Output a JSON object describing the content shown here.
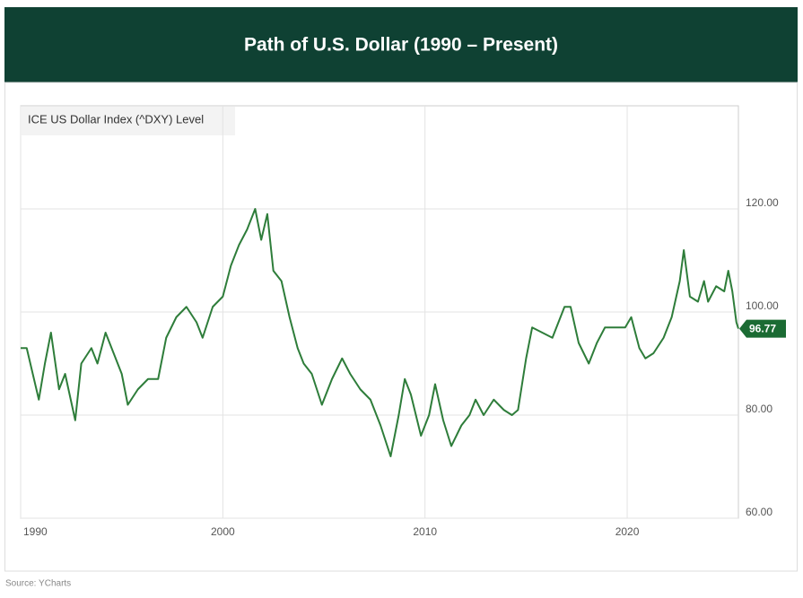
{
  "chart_data": {
    "type": "line",
    "title": "Path of U.S. Dollar (1990 – Present)",
    "source": "Source: YCharts",
    "series": [
      {
        "name": "ICE US Dollar Index (^DXY) Level",
        "color": "#2e7d3a",
        "x": [
          1990.0,
          1990.3,
          1990.6,
          1990.9,
          1991.2,
          1991.5,
          1991.9,
          1992.2,
          1992.7,
          1993.0,
          1993.5,
          1993.8,
          1994.2,
          1994.6,
          1995.0,
          1995.3,
          1995.8,
          1996.3,
          1996.8,
          1997.2,
          1997.7,
          1998.2,
          1998.7,
          1999.0,
          1999.5,
          2000.0,
          2000.4,
          2000.8,
          2001.2,
          2001.6,
          2001.9,
          2002.2,
          2002.5,
          2002.9,
          2003.3,
          2003.7,
          2004.0,
          2004.4,
          2004.9,
          2005.4,
          2005.9,
          2006.3,
          2006.8,
          2007.3,
          2007.8,
          2008.3,
          2008.7,
          2009.0,
          2009.3,
          2009.8,
          2010.2,
          2010.5,
          2010.9,
          2011.3,
          2011.8,
          2012.2,
          2012.5,
          2012.9,
          2013.4,
          2013.9,
          2014.3,
          2014.6,
          2015.0,
          2015.3,
          2015.8,
          2016.3,
          2016.9,
          2017.2,
          2017.6,
          2018.1,
          2018.5,
          2018.9,
          2019.4,
          2019.9,
          2020.2,
          2020.6,
          2020.9,
          2021.3,
          2021.8,
          2022.2,
          2022.6,
          2022.8,
          2023.1,
          2023.5,
          2023.8,
          2024.0,
          2024.4,
          2024.8,
          2025.0,
          2025.2,
          2025.4,
          2025.5
        ],
        "values": [
          93,
          93,
          88,
          83,
          90,
          96,
          85,
          88,
          79,
          90,
          93,
          90,
          96,
          92,
          88,
          82,
          85,
          87,
          87,
          95,
          99,
          101,
          98,
          95,
          101,
          103,
          109,
          113,
          116,
          120,
          114,
          119,
          108,
          106,
          99,
          93,
          90,
          88,
          82,
          87,
          91,
          88,
          85,
          83,
          78,
          72,
          80,
          87,
          84,
          76,
          80,
          86,
          79,
          74,
          78,
          80,
          83,
          80,
          83,
          81,
          80,
          81,
          91,
          97,
          96,
          95,
          101,
          101,
          94,
          90,
          94,
          97,
          97,
          97,
          99,
          93,
          91,
          92,
          95,
          99,
          106,
          112,
          103,
          102,
          106,
          102,
          105,
          104,
          108,
          104,
          98,
          96.77
        ]
      }
    ],
    "xlim": [
      1990,
      2025.5
    ],
    "xticks": [
      1990,
      2000,
      2010,
      2020
    ],
    "ylim": [
      60,
      140
    ],
    "yticks": [
      {
        "value": 60,
        "label": "60.00"
      },
      {
        "value": 80,
        "label": "80.00"
      },
      {
        "value": 100,
        "label": "100.00"
      },
      {
        "value": 120,
        "label": "120.00"
      }
    ],
    "grid": true
  }
}
